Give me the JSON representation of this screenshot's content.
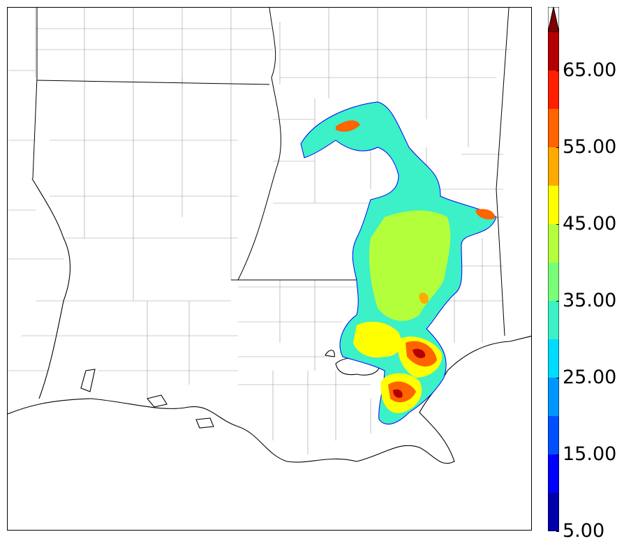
{
  "colorbar": {
    "ticks": [
      {
        "value": 5,
        "label": "5.00"
      },
      {
        "value": 15,
        "label": "15.00"
      },
      {
        "value": 25,
        "label": "25.00"
      },
      {
        "value": 35,
        "label": "35.00"
      },
      {
        "value": 45,
        "label": "45.00"
      },
      {
        "value": 55,
        "label": "55.00"
      },
      {
        "value": 65,
        "label": "65.00"
      }
    ],
    "min": 5,
    "max": 70,
    "levels": [
      {
        "from": 5,
        "to": 10,
        "color": "#0000aa"
      },
      {
        "from": 10,
        "to": 15,
        "color": "#0000ff"
      },
      {
        "from": 15,
        "to": 20,
        "color": "#0050ff"
      },
      {
        "from": 20,
        "to": 25,
        "color": "#0096ff"
      },
      {
        "from": 25,
        "to": 30,
        "color": "#00dcff"
      },
      {
        "from": 30,
        "to": 35,
        "color": "#3cf0c8"
      },
      {
        "from": 35,
        "to": 40,
        "color": "#78ff78"
      },
      {
        "from": 40,
        "to": 45,
        "color": "#b4ff3c"
      },
      {
        "from": 45,
        "to": 50,
        "color": "#ffff00"
      },
      {
        "from": 50,
        "to": 55,
        "color": "#ffaa00"
      },
      {
        "from": 55,
        "to": 60,
        "color": "#ff6400"
      },
      {
        "from": 60,
        "to": 65,
        "color": "#ff1e00"
      },
      {
        "from": 65,
        "to": 70,
        "color": "#b40000"
      }
    ],
    "extend": "max",
    "extend_color": "#800000"
  },
  "map": {
    "region": "Louisiana / Mississippi Gulf Coast",
    "boundary_colors": {
      "state": "#000000",
      "county": "#999999",
      "coast": "#000000"
    }
  }
}
